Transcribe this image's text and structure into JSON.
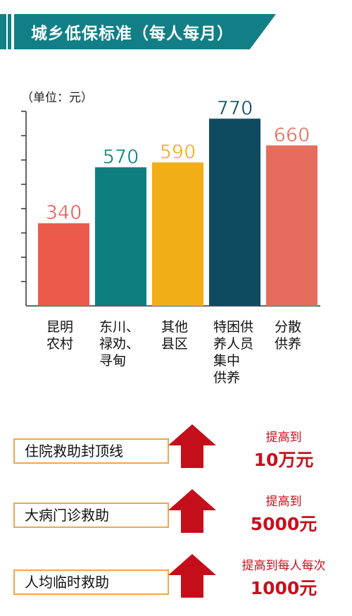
{
  "banner": {
    "title": "城乡低保标准（每人每月）"
  },
  "chart_data": {
    "type": "bar",
    "unit_label": "（单位：元）",
    "categories": [
      "昆明\n农村",
      "东川、\n禄劝、\n寻甸",
      "其他\n县区",
      "特困供\n养人员\n集中\n供养",
      "分散\n供养"
    ],
    "values": [
      340,
      570,
      590,
      770,
      660
    ],
    "data_labels": [
      "340",
      "570",
      "590",
      "770",
      "660"
    ],
    "colors": [
      "#ec5a4b",
      "#0f7e7e",
      "#f2ae16",
      "#0e4b61",
      "#e66d5d"
    ],
    "label_color": "#ec5a4b",
    "ylim": [
      0,
      800
    ]
  },
  "measures": [
    {
      "name": "住院救助封顶线",
      "line1": "提高到",
      "line2": "10万元"
    },
    {
      "name": "大病门诊救助",
      "line1": "提高到",
      "line2": "5000元"
    },
    {
      "name": "人均临时救助",
      "line1": "提高到每人每次",
      "line2": "1000元"
    }
  ],
  "colors": {
    "banner": "#127f86",
    "arrow": "#c40f1b",
    "box_border": "#f1a54e",
    "result_text": "#c8101d"
  }
}
